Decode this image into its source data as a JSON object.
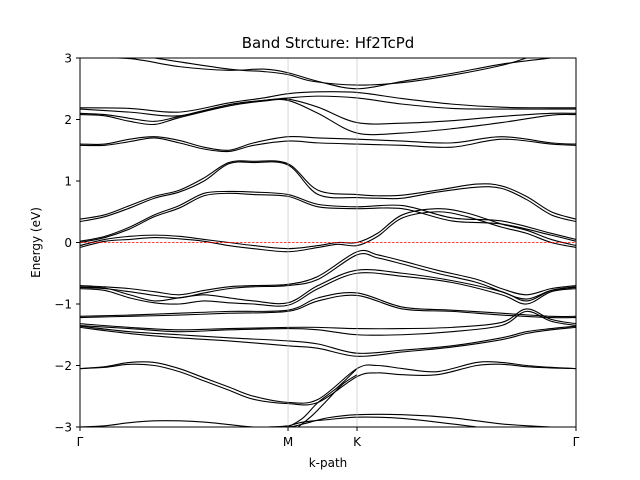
{
  "chart_data": {
    "type": "line",
    "title": "Band Strcture: Hf2TcPd",
    "xlabel": "k-path",
    "ylabel": "Energy (eV)",
    "ylim": [
      -3,
      3
    ],
    "yticks": [
      -3,
      -2,
      -1,
      0,
      1,
      2,
      3
    ],
    "ytick_labels": [
      "−3",
      "−2",
      "−1",
      "0",
      "1",
      "2",
      "3"
    ],
    "xlim": [
      0,
      1
    ],
    "xticks": [
      {
        "pos": 0.0,
        "label": "Γ"
      },
      {
        "pos": 0.4194,
        "label": "M"
      },
      {
        "pos": 0.5585,
        "label": "K"
      },
      {
        "pos": 1.0,
        "label": "Γ"
      }
    ],
    "fermi_level": 0,
    "fermi_color": "#ff0000",
    "band_color": "#000000",
    "series": [
      {
        "x": [
          0,
          0.1,
          0.2,
          0.3,
          0.37,
          0.4194,
          0.48,
          0.5585,
          0.65,
          0.75,
          0.85,
          0.95
        ],
        "y": [
          3.0,
          2.99,
          2.86,
          2.8,
          2.82,
          2.76,
          2.62,
          2.5,
          2.62,
          2.75,
          2.9,
          3.0
        ]
      },
      {
        "x": [
          0.15,
          0.3,
          0.37,
          0.4194,
          0.47,
          0.5585,
          0.65,
          0.75,
          0.85,
          0.9
        ],
        "y": [
          3.0,
          2.82,
          2.78,
          2.73,
          2.62,
          2.56,
          2.6,
          2.72,
          2.88,
          3.0
        ]
      },
      {
        "x": [
          0,
          0.1,
          0.2,
          0.3,
          0.37,
          0.4194,
          0.48,
          0.5585,
          0.65,
          0.75,
          0.85,
          0.95,
          1.0
        ],
        "y": [
          2.19,
          2.18,
          2.12,
          2.27,
          2.35,
          2.42,
          2.45,
          2.44,
          2.34,
          2.25,
          2.2,
          2.19,
          2.19
        ]
      },
      {
        "x": [
          0,
          0.1,
          0.2,
          0.3,
          0.37,
          0.4194,
          0.48,
          0.5585,
          0.65,
          0.75,
          0.85,
          0.95,
          1.0
        ],
        "y": [
          2.17,
          2.12,
          2.06,
          2.24,
          2.31,
          2.35,
          2.38,
          2.35,
          2.25,
          2.18,
          2.17,
          2.17,
          2.17
        ]
      },
      {
        "x": [
          0,
          0.05,
          0.1,
          0.15,
          0.2,
          0.3,
          0.37,
          0.4194,
          0.48,
          0.5585,
          0.65,
          0.75,
          0.85,
          0.95,
          1.0
        ],
        "y": [
          2.1,
          2.08,
          2.02,
          1.97,
          2.05,
          2.24,
          2.31,
          2.33,
          2.2,
          1.95,
          1.94,
          1.98,
          2.05,
          2.1,
          2.1
        ]
      },
      {
        "x": [
          0,
          0.05,
          0.1,
          0.15,
          0.2,
          0.3,
          0.37,
          0.4194,
          0.48,
          0.5585,
          0.65,
          0.75,
          0.85,
          0.95,
          1.0
        ],
        "y": [
          2.08,
          2.06,
          1.97,
          1.92,
          2.03,
          2.22,
          2.3,
          2.31,
          2.1,
          1.78,
          1.78,
          1.85,
          1.95,
          2.07,
          2.08
        ]
      },
      {
        "x": [
          0,
          0.05,
          0.1,
          0.15,
          0.2,
          0.25,
          0.3,
          0.35,
          0.4194,
          0.48,
          0.5585,
          0.65,
          0.75,
          0.85,
          0.95,
          1.0
        ],
        "y": [
          1.6,
          1.6,
          1.68,
          1.72,
          1.66,
          1.55,
          1.5,
          1.62,
          1.72,
          1.7,
          1.68,
          1.65,
          1.62,
          1.72,
          1.62,
          1.6
        ]
      },
      {
        "x": [
          0,
          0.05,
          0.1,
          0.15,
          0.2,
          0.25,
          0.3,
          0.35,
          0.4194,
          0.48,
          0.5585,
          0.65,
          0.75,
          0.85,
          0.95,
          1.0
        ],
        "y": [
          1.58,
          1.58,
          1.64,
          1.7,
          1.62,
          1.52,
          1.48,
          1.58,
          1.65,
          1.62,
          1.6,
          1.58,
          1.55,
          1.68,
          1.6,
          1.58
        ]
      },
      {
        "x": [
          0,
          0.05,
          0.1,
          0.15,
          0.2,
          0.25,
          0.3,
          0.35,
          0.4194,
          0.48,
          0.5585,
          0.6,
          0.65,
          0.72,
          0.8,
          0.85,
          0.9,
          0.95,
          1.0
        ],
        "y": [
          0.38,
          0.45,
          0.6,
          0.75,
          0.85,
          1.05,
          1.3,
          1.32,
          1.28,
          0.85,
          0.78,
          0.76,
          0.77,
          0.85,
          0.95,
          0.92,
          0.75,
          0.5,
          0.38
        ]
      },
      {
        "x": [
          0,
          0.05,
          0.1,
          0.15,
          0.2,
          0.25,
          0.3,
          0.35,
          0.4194,
          0.48,
          0.5585,
          0.6,
          0.65,
          0.72,
          0.8,
          0.85,
          0.9,
          0.95,
          1.0
        ],
        "y": [
          0.34,
          0.42,
          0.56,
          0.72,
          0.82,
          1.0,
          1.28,
          1.3,
          1.26,
          0.78,
          0.73,
          0.72,
          0.72,
          0.82,
          0.9,
          0.88,
          0.7,
          0.45,
          0.34
        ]
      },
      {
        "x": [
          0,
          0.05,
          0.1,
          0.15,
          0.2,
          0.25,
          0.3,
          0.35,
          0.4194,
          0.48,
          0.5585,
          0.65,
          0.75,
          0.85,
          0.95,
          1.0
        ],
        "y": [
          0.02,
          0.1,
          0.25,
          0.45,
          0.6,
          0.8,
          0.83,
          0.82,
          0.78,
          0.62,
          0.58,
          0.6,
          0.4,
          0.35,
          0.15,
          0.05
        ]
      },
      {
        "x": [
          0,
          0.05,
          0.1,
          0.15,
          0.2,
          0.25,
          0.3,
          0.35,
          0.4194,
          0.48,
          0.5585,
          0.65,
          0.75,
          0.85,
          0.95,
          1.0
        ],
        "y": [
          0.0,
          0.08,
          0.22,
          0.42,
          0.56,
          0.76,
          0.8,
          0.78,
          0.75,
          0.58,
          0.55,
          0.55,
          0.35,
          0.3,
          0.12,
          0.02
        ]
      },
      {
        "x": [
          0,
          0.05,
          0.1,
          0.15,
          0.2,
          0.25,
          0.3,
          0.35,
          0.4194,
          0.48,
          0.52,
          0.5585,
          0.6,
          0.65,
          0.72,
          0.78,
          0.85,
          0.9,
          0.95,
          1.0
        ],
        "y": [
          -0.05,
          0.05,
          0.1,
          0.12,
          0.1,
          0.05,
          0.0,
          -0.05,
          -0.1,
          -0.05,
          0.0,
          0.0,
          0.15,
          0.45,
          0.55,
          0.48,
          0.3,
          0.2,
          0.05,
          -0.05
        ]
      },
      {
        "x": [
          0,
          0.05,
          0.1,
          0.15,
          0.2,
          0.25,
          0.3,
          0.35,
          0.4194,
          0.48,
          0.52,
          0.5585,
          0.6,
          0.65,
          0.72,
          0.78,
          0.85,
          0.9,
          0.95,
          1.0
        ],
        "y": [
          -0.08,
          0.02,
          0.05,
          0.08,
          0.06,
          0.02,
          -0.05,
          -0.1,
          -0.15,
          -0.08,
          -0.03,
          -0.05,
          0.1,
          0.4,
          0.5,
          0.42,
          0.25,
          0.15,
          0.0,
          -0.08
        ]
      },
      {
        "x": [
          0,
          0.05,
          0.1,
          0.15,
          0.2,
          0.25,
          0.3,
          0.35,
          0.4194,
          0.48,
          0.5585,
          0.6,
          0.65,
          0.72,
          0.8,
          0.85,
          0.9,
          0.95,
          1.0
        ],
        "y": [
          -0.7,
          -0.72,
          -0.75,
          -0.8,
          -0.85,
          -0.78,
          -0.72,
          -0.7,
          -0.68,
          -0.55,
          -0.15,
          -0.2,
          -0.3,
          -0.45,
          -0.6,
          -0.75,
          -0.85,
          -0.75,
          -0.7
        ]
      },
      {
        "x": [
          0,
          0.05,
          0.1,
          0.15,
          0.2,
          0.25,
          0.3,
          0.35,
          0.4194,
          0.48,
          0.5585,
          0.6,
          0.65,
          0.72,
          0.8,
          0.85,
          0.9,
          0.95,
          1.0
        ],
        "y": [
          -0.73,
          -0.75,
          -0.8,
          -0.86,
          -0.9,
          -0.82,
          -0.75,
          -0.72,
          -0.7,
          -0.6,
          -0.2,
          -0.25,
          -0.35,
          -0.5,
          -0.65,
          -0.8,
          -0.92,
          -0.78,
          -0.73
        ]
      },
      {
        "x": [
          0,
          0.05,
          0.1,
          0.15,
          0.2,
          0.25,
          0.3,
          0.35,
          0.4194,
          0.48,
          0.5585,
          0.65,
          0.75,
          0.85,
          0.9,
          0.95,
          1.0
        ],
        "y": [
          -0.72,
          -0.74,
          -0.85,
          -0.95,
          -0.9,
          -0.85,
          -0.9,
          -0.95,
          -0.98,
          -0.7,
          -0.45,
          -0.5,
          -0.62,
          -0.8,
          -0.95,
          -0.78,
          -0.72
        ]
      },
      {
        "x": [
          0,
          0.05,
          0.1,
          0.15,
          0.2,
          0.25,
          0.3,
          0.35,
          0.4194,
          0.48,
          0.5585,
          0.65,
          0.75,
          0.85,
          0.9,
          0.95,
          1.0
        ],
        "y": [
          -0.75,
          -0.78,
          -0.9,
          -0.98,
          -1.0,
          -0.95,
          -0.98,
          -1.0,
          -1.02,
          -0.75,
          -0.5,
          -0.55,
          -0.65,
          -0.85,
          -1.0,
          -0.8,
          -0.75
        ]
      },
      {
        "x": [
          0,
          0.1,
          0.2,
          0.3,
          0.4194,
          0.48,
          0.5585,
          0.65,
          0.75,
          0.85,
          0.95,
          1.0
        ],
        "y": [
          -1.2,
          -1.18,
          -1.15,
          -1.12,
          -1.1,
          -0.9,
          -0.82,
          -1.05,
          -1.1,
          -1.15,
          -1.2,
          -1.2
        ]
      },
      {
        "x": [
          0,
          0.1,
          0.2,
          0.3,
          0.4194,
          0.48,
          0.5585,
          0.65,
          0.75,
          0.85,
          0.95,
          1.0
        ],
        "y": [
          -1.22,
          -1.2,
          -1.18,
          -1.15,
          -1.12,
          -0.95,
          -0.86,
          -1.08,
          -1.12,
          -1.18,
          -1.22,
          -1.22
        ]
      },
      {
        "x": [
          0,
          0.1,
          0.2,
          0.3,
          0.4194,
          0.48,
          0.5585,
          0.65,
          0.75,
          0.85,
          0.9,
          0.95,
          1.0
        ],
        "y": [
          -1.32,
          -1.38,
          -1.42,
          -1.4,
          -1.38,
          -1.38,
          -1.4,
          -1.4,
          -1.38,
          -1.3,
          -1.08,
          -1.25,
          -1.32
        ]
      },
      {
        "x": [
          0,
          0.1,
          0.2,
          0.3,
          0.4194,
          0.48,
          0.5585,
          0.65,
          0.75,
          0.85,
          0.9,
          0.95,
          1.0
        ],
        "y": [
          -1.35,
          -1.4,
          -1.45,
          -1.42,
          -1.4,
          -1.42,
          -1.5,
          -1.5,
          -1.45,
          -1.35,
          -1.12,
          -1.28,
          -1.35
        ]
      },
      {
        "x": [
          0,
          0.1,
          0.2,
          0.3,
          0.4194,
          0.48,
          0.5585,
          0.65,
          0.75,
          0.85,
          0.9,
          0.95,
          1.0
        ],
        "y": [
          -1.36,
          -1.45,
          -1.5,
          -1.55,
          -1.6,
          -1.65,
          -1.8,
          -1.75,
          -1.68,
          -1.55,
          -1.45,
          -1.4,
          -1.36
        ]
      },
      {
        "x": [
          0,
          0.1,
          0.2,
          0.3,
          0.4194,
          0.48,
          0.5585,
          0.65,
          0.75,
          0.85,
          0.9,
          0.95,
          1.0
        ],
        "y": [
          -1.38,
          -1.48,
          -1.55,
          -1.6,
          -1.68,
          -1.72,
          -1.85,
          -1.78,
          -1.7,
          -1.58,
          -1.48,
          -1.42,
          -1.38
        ]
      },
      {
        "x": [
          0,
          0.05,
          0.1,
          0.15,
          0.2,
          0.25,
          0.3,
          0.35,
          0.4194,
          0.48,
          0.5585,
          0.6,
          0.65,
          0.72,
          0.8,
          0.85,
          0.9,
          0.95,
          1.0
        ],
        "y": [
          -2.05,
          -2.02,
          -1.95,
          -1.95,
          -2.05,
          -2.2,
          -2.35,
          -2.5,
          -2.6,
          -2.55,
          -2.05,
          -2.0,
          -2.05,
          -2.1,
          -1.95,
          -1.95,
          -2.0,
          -2.03,
          -2.05
        ]
      },
      {
        "x": [
          0,
          0.05,
          0.1,
          0.15,
          0.2,
          0.25,
          0.3,
          0.35,
          0.4194,
          0.48,
          0.5585,
          0.6,
          0.65,
          0.72,
          0.8,
          0.85,
          0.9,
          0.95,
          1.0
        ],
        "y": [
          -2.05,
          -2.03,
          -1.98,
          -2.0,
          -2.1,
          -2.25,
          -2.4,
          -2.55,
          -2.62,
          -2.6,
          -2.18,
          -2.12,
          -2.15,
          -2.15,
          -2.0,
          -1.98,
          -2.02,
          -2.04,
          -2.05
        ]
      },
      {
        "x": [
          0,
          0.05,
          0.1,
          0.15,
          0.2,
          0.25,
          0.3,
          0.35,
          0.4194,
          0.45,
          0.5,
          0.5585,
          0.65,
          0.75,
          0.85,
          0.95,
          1.0
        ],
        "y": [
          -3.0,
          -2.98,
          -2.93,
          -2.9,
          -2.9,
          -2.92,
          -2.96,
          -3.0,
          -3.0,
          -2.95,
          -2.85,
          -2.8,
          -2.8,
          -2.85,
          -2.95,
          -3.0,
          -3.0
        ]
      },
      {
        "x": [
          0.38,
          0.4194,
          0.45,
          0.5,
          0.5585,
          0.65,
          0.75,
          0.8
        ],
        "y": [
          -3.0,
          -2.98,
          -2.92,
          -2.88,
          -2.84,
          -2.86,
          -2.95,
          -3.0
        ]
      },
      {
        "x": [
          0.42,
          0.45,
          0.48,
          0.52,
          0.5585
        ],
        "y": [
          -3.0,
          -2.85,
          -2.6,
          -2.35,
          -2.05
        ]
      },
      {
        "x": [
          0.44,
          0.47,
          0.5,
          0.53,
          0.5585
        ],
        "y": [
          -3.0,
          -2.8,
          -2.55,
          -2.3,
          -2.15
        ]
      }
    ]
  }
}
